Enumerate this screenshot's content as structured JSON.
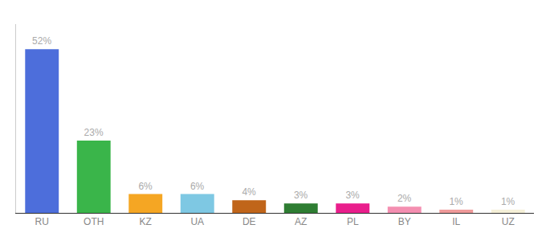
{
  "chart_data": {
    "type": "bar",
    "categories": [
      "RU",
      "OTH",
      "KZ",
      "UA",
      "DE",
      "AZ",
      "PL",
      "BY",
      "IL",
      "UZ"
    ],
    "values": [
      52,
      23,
      6,
      6,
      4,
      3,
      3,
      2,
      1,
      1
    ],
    "value_labels": [
      "52%",
      "23%",
      "6%",
      "6%",
      "4%",
      "3%",
      "3%",
      "2%",
      "1%",
      "1%"
    ],
    "colors": [
      "#4d6edb",
      "#3ab54a",
      "#f5a623",
      "#7ec8e3",
      "#c0651a",
      "#2e7d32",
      "#e91e8c",
      "#f48fb1",
      "#ef9a9a",
      "#f5f0d8"
    ],
    "ylim": [
      0,
      60
    ],
    "grid": false,
    "data_labels": true,
    "tick_labels": "x"
  }
}
